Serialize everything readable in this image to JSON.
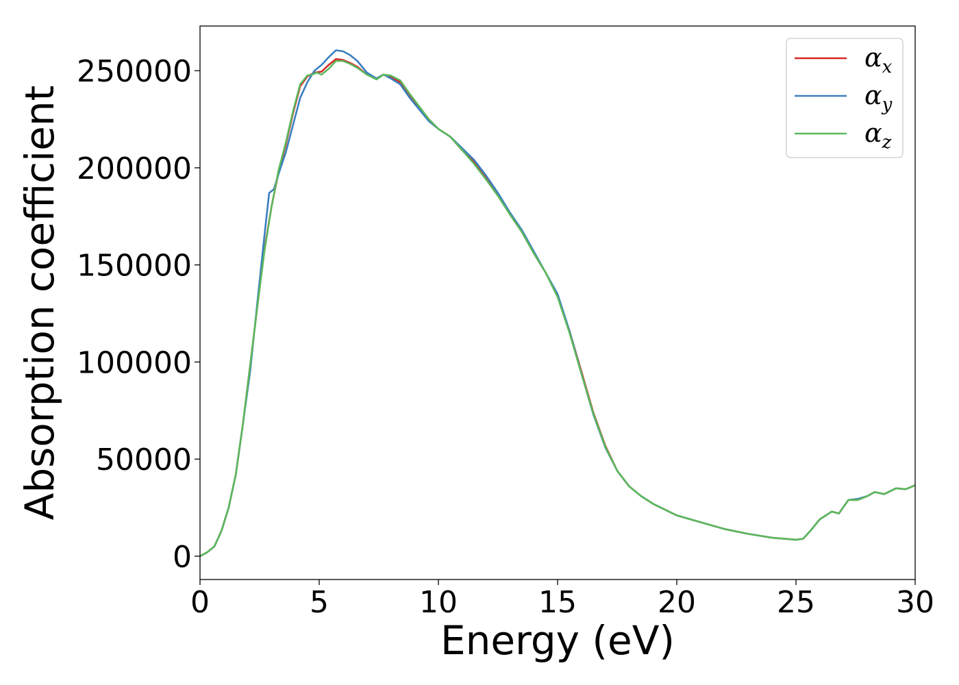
{
  "chart_data": {
    "type": "line",
    "title": "",
    "xlabel": "Energy (eV)",
    "ylabel": "Absorption coefficient",
    "xlim": [
      0,
      30
    ],
    "ylim": [
      -12000,
      273000
    ],
    "xticks": [
      0,
      5,
      10,
      15,
      20,
      25,
      30
    ],
    "xtick_labels": [
      "0",
      "5",
      "10",
      "15",
      "20",
      "25",
      "30"
    ],
    "yticks": [
      0,
      50000,
      100000,
      150000,
      200000,
      250000
    ],
    "ytick_labels": [
      "0",
      "50000",
      "100000",
      "150000",
      "200000",
      "250000"
    ],
    "grid": false,
    "legend_position": "top-right",
    "series": [
      {
        "name": "α",
        "sub": "x",
        "color": "#d62728",
        "points": [
          [
            0,
            0
          ],
          [
            0.3,
            2000
          ],
          [
            0.6,
            5000
          ],
          [
            0.9,
            13000
          ],
          [
            1.2,
            25000
          ],
          [
            1.5,
            42000
          ],
          [
            1.8,
            68000
          ],
          [
            2.1,
            98000
          ],
          [
            2.4,
            128000
          ],
          [
            2.7,
            158000
          ],
          [
            3.0,
            180000
          ],
          [
            3.3,
            198000
          ],
          [
            3.6,
            212000
          ],
          [
            3.9,
            228000
          ],
          [
            4.2,
            242000
          ],
          [
            4.5,
            247000
          ],
          [
            4.8,
            249000
          ],
          [
            5.1,
            249500
          ],
          [
            5.4,
            253000
          ],
          [
            5.7,
            256000
          ],
          [
            6.0,
            255500
          ],
          [
            6.3,
            254000
          ],
          [
            6.6,
            252000
          ],
          [
            7.0,
            248000
          ],
          [
            7.4,
            246000
          ],
          [
            7.7,
            248000
          ],
          [
            8.0,
            247000
          ],
          [
            8.4,
            244000
          ],
          [
            8.8,
            237000
          ],
          [
            9.2,
            231000
          ],
          [
            9.6,
            225000
          ],
          [
            10.0,
            220000
          ],
          [
            10.5,
            216000
          ],
          [
            11.0,
            209000
          ],
          [
            11.5,
            203000
          ],
          [
            12.0,
            195000
          ],
          [
            12.5,
            186000
          ],
          [
            13.0,
            176000
          ],
          [
            13.5,
            167000
          ],
          [
            14.0,
            156000
          ],
          [
            14.5,
            146000
          ],
          [
            15.0,
            134000
          ],
          [
            15.5,
            116000
          ],
          [
            16.0,
            95000
          ],
          [
            16.5,
            74000
          ],
          [
            17.0,
            57000
          ],
          [
            17.5,
            44000
          ],
          [
            18.0,
            36000
          ],
          [
            18.5,
            31000
          ],
          [
            19.0,
            27000
          ],
          [
            20.0,
            21000
          ],
          [
            21.0,
            17500
          ],
          [
            22.0,
            14000
          ],
          [
            23.0,
            11500
          ],
          [
            24.0,
            9500
          ],
          [
            25.0,
            8500
          ],
          [
            25.3,
            9000
          ],
          [
            25.6,
            13000
          ],
          [
            26.0,
            19000
          ],
          [
            26.5,
            23000
          ],
          [
            26.8,
            22000
          ],
          [
            27.2,
            29000
          ],
          [
            27.6,
            29000
          ],
          [
            28.0,
            31000
          ],
          [
            28.3,
            33000
          ],
          [
            28.7,
            32000
          ],
          [
            29.2,
            35000
          ],
          [
            29.6,
            34500
          ],
          [
            30.0,
            36500
          ]
        ]
      },
      {
        "name": "α",
        "sub": "y",
        "color": "#3a7fc0",
        "points": [
          [
            0,
            0
          ],
          [
            0.3,
            2000
          ],
          [
            0.6,
            5000
          ],
          [
            0.9,
            13000
          ],
          [
            1.2,
            25000
          ],
          [
            1.5,
            42000
          ],
          [
            1.8,
            68000
          ],
          [
            2.1,
            95000
          ],
          [
            2.4,
            130000
          ],
          [
            2.7,
            165000
          ],
          [
            2.9,
            187000
          ],
          [
            3.1,
            189000
          ],
          [
            3.3,
            197000
          ],
          [
            3.6,
            208000
          ],
          [
            3.9,
            222000
          ],
          [
            4.2,
            236000
          ],
          [
            4.5,
            244000
          ],
          [
            4.8,
            250000
          ],
          [
            5.1,
            253000
          ],
          [
            5.4,
            257000
          ],
          [
            5.7,
            260500
          ],
          [
            6.0,
            260000
          ],
          [
            6.3,
            258000
          ],
          [
            6.6,
            255000
          ],
          [
            7.0,
            249000
          ],
          [
            7.4,
            246000
          ],
          [
            7.7,
            248000
          ],
          [
            8.0,
            246000
          ],
          [
            8.4,
            243000
          ],
          [
            8.8,
            236000
          ],
          [
            9.2,
            230000
          ],
          [
            9.6,
            224000
          ],
          [
            10.0,
            220000
          ],
          [
            10.5,
            216000
          ],
          [
            11.0,
            210000
          ],
          [
            11.5,
            204000
          ],
          [
            12.0,
            196000
          ],
          [
            12.5,
            187000
          ],
          [
            13.0,
            177000
          ],
          [
            13.5,
            168000
          ],
          [
            14.0,
            157000
          ],
          [
            14.5,
            146000
          ],
          [
            15.0,
            135000
          ],
          [
            15.5,
            116000
          ],
          [
            16.0,
            94000
          ],
          [
            16.5,
            73000
          ],
          [
            17.0,
            56000
          ],
          [
            17.5,
            44000
          ],
          [
            18.0,
            36000
          ],
          [
            18.5,
            31000
          ],
          [
            19.0,
            27000
          ],
          [
            20.0,
            21000
          ],
          [
            21.0,
            17500
          ],
          [
            22.0,
            14000
          ],
          [
            23.0,
            11500
          ],
          [
            24.0,
            9500
          ],
          [
            25.0,
            8500
          ],
          [
            25.3,
            9000
          ],
          [
            25.6,
            13000
          ],
          [
            26.0,
            19000
          ],
          [
            26.5,
            23000
          ],
          [
            26.8,
            22000
          ],
          [
            27.2,
            29000
          ],
          [
            27.6,
            29500
          ],
          [
            28.0,
            31000
          ],
          [
            28.3,
            33000
          ],
          [
            28.7,
            32000
          ],
          [
            29.2,
            35000
          ],
          [
            29.6,
            34500
          ],
          [
            30.0,
            36500
          ]
        ]
      },
      {
        "name": "α",
        "sub": "z",
        "color": "#5cb85c",
        "points": [
          [
            0,
            0
          ],
          [
            0.3,
            2000
          ],
          [
            0.6,
            5000
          ],
          [
            0.9,
            13000
          ],
          [
            1.2,
            25000
          ],
          [
            1.5,
            42000
          ],
          [
            1.8,
            68000
          ],
          [
            2.1,
            98000
          ],
          [
            2.4,
            128000
          ],
          [
            2.7,
            157000
          ],
          [
            3.0,
            180000
          ],
          [
            3.3,
            199000
          ],
          [
            3.6,
            213000
          ],
          [
            3.9,
            229000
          ],
          [
            4.2,
            243000
          ],
          [
            4.5,
            247500
          ],
          [
            4.7,
            248000
          ],
          [
            4.9,
            249000
          ],
          [
            5.1,
            248000
          ],
          [
            5.4,
            251000
          ],
          [
            5.7,
            255000
          ],
          [
            6.0,
            255000
          ],
          [
            6.3,
            253500
          ],
          [
            6.6,
            251500
          ],
          [
            7.0,
            248000
          ],
          [
            7.4,
            245500
          ],
          [
            7.7,
            248000
          ],
          [
            8.0,
            247500
          ],
          [
            8.4,
            245000
          ],
          [
            8.8,
            238000
          ],
          [
            9.2,
            231500
          ],
          [
            9.6,
            225000
          ],
          [
            10.0,
            220000
          ],
          [
            10.5,
            216000
          ],
          [
            11.0,
            209000
          ],
          [
            11.5,
            202000
          ],
          [
            12.0,
            194000
          ],
          [
            12.5,
            185500
          ],
          [
            13.0,
            176000
          ],
          [
            13.5,
            167000
          ],
          [
            14.0,
            156000
          ],
          [
            14.5,
            146000
          ],
          [
            15.0,
            133500
          ],
          [
            15.5,
            115000
          ],
          [
            16.0,
            94000
          ],
          [
            16.5,
            73500
          ],
          [
            17.0,
            56500
          ],
          [
            17.5,
            44000
          ],
          [
            18.0,
            36000
          ],
          [
            18.5,
            31000
          ],
          [
            19.0,
            27000
          ],
          [
            20.0,
            21000
          ],
          [
            21.0,
            17500
          ],
          [
            22.0,
            14000
          ],
          [
            23.0,
            11500
          ],
          [
            24.0,
            9500
          ],
          [
            25.0,
            8500
          ],
          [
            25.3,
            9000
          ],
          [
            25.6,
            13000
          ],
          [
            26.0,
            19000
          ],
          [
            26.5,
            23000
          ],
          [
            26.8,
            22000
          ],
          [
            27.2,
            29000
          ],
          [
            27.6,
            29000
          ],
          [
            28.0,
            31000
          ],
          [
            28.3,
            33000
          ],
          [
            28.7,
            32000
          ],
          [
            29.2,
            35000
          ],
          [
            29.6,
            34500
          ],
          [
            30.0,
            36500
          ]
        ]
      }
    ]
  }
}
